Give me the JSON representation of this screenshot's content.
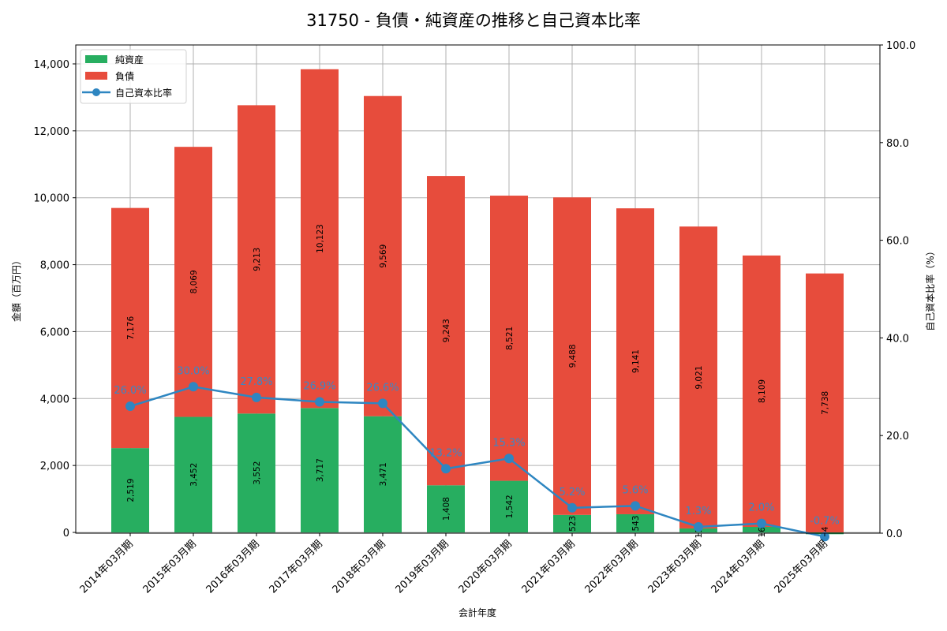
{
  "chart_data": {
    "type": "bar",
    "subtype": "stacked_bar_with_line_secondary_axis",
    "title": "31750 - 負債・純資産の推移と自己資本比率",
    "xlabel": "会計年度",
    "ylabel": "金額（百万円）",
    "y2label": "自己資本比率（%）",
    "ylim": [
      0,
      14565
    ],
    "y2lim": [
      0,
      100
    ],
    "yticks": [
      "0",
      "2,000",
      "4,000",
      "6,000",
      "8,000",
      "10,000",
      "12,000",
      "14,000"
    ],
    "ytick_values": [
      0,
      2000,
      4000,
      6000,
      8000,
      10000,
      12000,
      14000
    ],
    "y2ticks": [
      "0.0",
      "20.0",
      "40.0",
      "60.0",
      "80.0",
      "100.0"
    ],
    "y2tick_values": [
      0,
      20,
      40,
      60,
      80,
      100
    ],
    "grid": true,
    "legend_position": "upper left",
    "categories": [
      "2014年03月期",
      "2015年03月期",
      "2016年03月期",
      "2017年03月期",
      "2018年03月期",
      "2019年03月期",
      "2020年03月期",
      "2021年03月期",
      "2022年03月期",
      "2023年03月期",
      "2024年03月期",
      "2025年03月期"
    ],
    "series": [
      {
        "name": "純資産",
        "type": "bar",
        "color": "#27ae60",
        "values": [
          2519,
          3452,
          3552,
          3717,
          3471,
          1408,
          1542,
          523,
          543,
          119,
          165,
          -54
        ],
        "labels": [
          "2,519",
          "3,452",
          "3,552",
          "3,717",
          "3,471",
          "1,408",
          "1,542",
          "523",
          "543",
          "119",
          "165",
          "-54"
        ]
      },
      {
        "name": "負債",
        "type": "bar",
        "color": "#e74c3c",
        "values": [
          7176,
          8069,
          9213,
          10123,
          9569,
          9243,
          8521,
          9488,
          9141,
          9021,
          8109,
          7738
        ],
        "labels": [
          "7,176",
          "8,069",
          "9,213",
          "10,123",
          "9,569",
          "9,243",
          "8,521",
          "9,488",
          "9,141",
          "9,021",
          "8,109",
          "7,738"
        ]
      },
      {
        "name": "自己資本比率",
        "type": "line",
        "axis": "right",
        "color": "#2e86c1",
        "values": [
          26.0,
          30.0,
          27.8,
          26.9,
          26.6,
          13.2,
          15.3,
          5.2,
          5.6,
          1.3,
          2.0,
          -0.7
        ],
        "labels": [
          "26.0%",
          "30.0%",
          "27.8%",
          "26.9%",
          "26.6%",
          "13.2%",
          "15.3%",
          "5.2%",
          "5.6%",
          "1.3%",
          "2.0%",
          "-0.7%"
        ]
      }
    ]
  }
}
